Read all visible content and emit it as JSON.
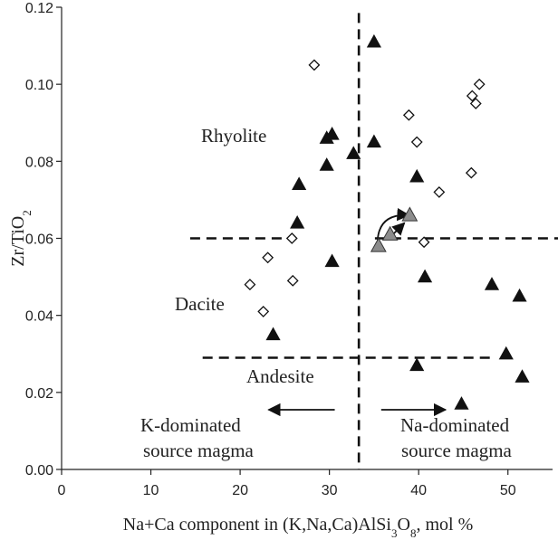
{
  "chart_data": {
    "type": "scatter",
    "title": "",
    "xlabel": "Na+Ca component in (K,Na,Ca)AlSi3O8, mol %",
    "ylabel": "Zr/TiO2",
    "xlim": [
      0,
      55
    ],
    "ylim": [
      0,
      0.12
    ],
    "x_ticks": [
      0,
      10,
      20,
      30,
      40,
      50
    ],
    "y_ticks": [
      0.0,
      0.02,
      0.04,
      0.06,
      0.08,
      0.1,
      0.12
    ],
    "grid": false,
    "series": [
      {
        "marker": "triangle-black",
        "color": "#111111",
        "points": [
          [
            35.0,
            0.111
          ],
          [
            29.7,
            0.086
          ],
          [
            30.3,
            0.087
          ],
          [
            29.7,
            0.079
          ],
          [
            32.7,
            0.082
          ],
          [
            35.0,
            0.085
          ],
          [
            39.8,
            0.076
          ],
          [
            26.6,
            0.074
          ],
          [
            26.4,
            0.064
          ],
          [
            30.3,
            0.054
          ],
          [
            40.7,
            0.05
          ],
          [
            48.2,
            0.048
          ],
          [
            51.3,
            0.045
          ],
          [
            23.7,
            0.035
          ],
          [
            39.8,
            0.027
          ],
          [
            49.8,
            0.03
          ],
          [
            51.6,
            0.024
          ],
          [
            44.8,
            0.017
          ]
        ]
      },
      {
        "marker": "diamond-open",
        "color": "#111111",
        "points": [
          [
            28.3,
            0.105
          ],
          [
            46.8,
            0.1
          ],
          [
            46.0,
            0.097
          ],
          [
            46.4,
            0.095
          ],
          [
            38.9,
            0.092
          ],
          [
            39.8,
            0.085
          ],
          [
            45.9,
            0.077
          ],
          [
            42.3,
            0.072
          ],
          [
            25.8,
            0.06
          ],
          [
            40.6,
            0.059
          ],
          [
            23.1,
            0.055
          ],
          [
            25.9,
            0.049
          ],
          [
            21.1,
            0.048
          ],
          [
            22.6,
            0.041
          ]
        ]
      },
      {
        "marker": "triangle-gray",
        "color": "#8c8c8c",
        "points": [
          [
            35.5,
            0.058
          ],
          [
            36.8,
            0.061
          ],
          [
            39.0,
            0.066
          ]
        ]
      }
    ],
    "annotations": {
      "rhyolite": "Rhyolite",
      "dacite": "Dacite",
      "andesite": "Andesite",
      "k_line1": "K-dominated",
      "k_line2": "source magma",
      "na_line1": "Na-dominated",
      "na_line2": "source magma"
    }
  }
}
